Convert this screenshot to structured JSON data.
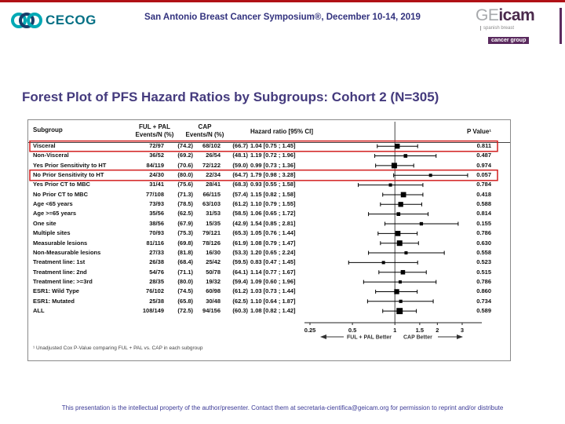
{
  "colors": {
    "accent_red": "#b01116",
    "title_purple": "#443a7d",
    "header_indigo": "#32327e",
    "footer_indigo": "#3b3a96",
    "highlight_red": "#d21f1f",
    "cecog_teal": "#00a9b5",
    "cecog_navy": "#173f6b",
    "geicam_purple": "#5a2a5e",
    "marker_black": "#000000"
  },
  "header": {
    "cecog_label": "CECOG",
    "symposium_title": "San Antonio Breast Cancer Symposium®, December 10-14, 2019",
    "geicam": {
      "ge": "GE",
      "icam": "icam",
      "sub1": "spanish breast",
      "sub2": "cancer group"
    }
  },
  "slide_title": "Forest Plot of PFS Hazard Ratios by Subgroups: Cohort 2 (N=305)",
  "chart_data": {
    "type": "forest",
    "title": "Forest Plot of PFS Hazard Ratios by Subgroups: Cohort 2 (N=305)",
    "scale": "log",
    "axis": {
      "ticks": [
        0.25,
        0.5,
        1,
        1.5,
        2,
        3
      ],
      "ref_line": 1,
      "range": [
        0.25,
        3.55
      ]
    },
    "columns": {
      "subgroup": "Subgroup",
      "arm1_line1": "FUL + PAL",
      "arm1_line2": "Events/N (%)",
      "arm2_line1": "CAP",
      "arm2_line2": "Events/N (%)",
      "hr": "Hazard ratio [95% CI]",
      "p": "P Value¹"
    },
    "direction_labels": {
      "left": "FUL + PAL Better",
      "right": "CAP Better"
    },
    "footnote": "¹ Unadjusted Cox P-Value comparing FUL + PAL vs. CAP in each subgroup",
    "highlighted_rows": [
      0,
      3
    ],
    "rows": [
      {
        "subgroup": "Visceral",
        "arm1_events": "72/97",
        "arm1_pct": "(74.2)",
        "arm2_events": "68/102",
        "arm2_pct": "(66.7)",
        "hr": 1.04,
        "ci_low": 0.75,
        "ci_high": 1.45,
        "hr_label": "1.04 [0.75 ; 1.45]",
        "p_value": "0.811"
      },
      {
        "subgroup": "Non-Visceral",
        "arm1_events": "36/52",
        "arm1_pct": "(69.2)",
        "arm2_events": "26/54",
        "arm2_pct": "(48.1)",
        "hr": 1.19,
        "ci_low": 0.72,
        "ci_high": 1.96,
        "hr_label": "1.19 [0.72 ; 1.96]",
        "p_value": "0.487"
      },
      {
        "subgroup": "Yes Prior Sensitivity to HT",
        "arm1_events": "84/119",
        "arm1_pct": "(70.6)",
        "arm2_events": "72/122",
        "arm2_pct": "(59.0)",
        "hr": 0.99,
        "ci_low": 0.73,
        "ci_high": 1.36,
        "hr_label": "0.99 [0.73 ; 1.36]",
        "p_value": "0.974"
      },
      {
        "subgroup": "No Prior Sensitivity to HT",
        "arm1_events": "24/30",
        "arm1_pct": "(80.0)",
        "arm2_events": "22/34",
        "arm2_pct": "(64.7)",
        "hr": 1.79,
        "ci_low": 0.98,
        "ci_high": 3.28,
        "hr_label": "1.79 [0.98 ; 3.28]",
        "p_value": "0.057"
      },
      {
        "subgroup": "Yes Prior CT to MBC",
        "arm1_events": "31/41",
        "arm1_pct": "(75.6)",
        "arm2_events": "28/41",
        "arm2_pct": "(68.3)",
        "hr": 0.93,
        "ci_low": 0.55,
        "ci_high": 1.58,
        "hr_label": "0.93 [0.55 ; 1.58]",
        "p_value": "0.784"
      },
      {
        "subgroup": "No Prior CT to MBC",
        "arm1_events": "77/108",
        "arm1_pct": "(71.3)",
        "arm2_events": "66/115",
        "arm2_pct": "(57.4)",
        "hr": 1.15,
        "ci_low": 0.82,
        "ci_high": 1.58,
        "hr_label": "1.15 [0.82 ; 1.58]",
        "p_value": "0.418"
      },
      {
        "subgroup": "Age <65 years",
        "arm1_events": "73/93",
        "arm1_pct": "(78.5)",
        "arm2_events": "63/103",
        "arm2_pct": "(61.2)",
        "hr": 1.1,
        "ci_low": 0.79,
        "ci_high": 1.55,
        "hr_label": "1.10 [0.79 ; 1.55]",
        "p_value": "0.588"
      },
      {
        "subgroup": "Age >=65 years",
        "arm1_events": "35/56",
        "arm1_pct": "(62.5)",
        "arm2_events": "31/53",
        "arm2_pct": "(58.5)",
        "hr": 1.06,
        "ci_low": 0.65,
        "ci_high": 1.72,
        "hr_label": "1.06 [0.65 ; 1.72]",
        "p_value": "0.814"
      },
      {
        "subgroup": "One site",
        "arm1_events": "38/56",
        "arm1_pct": "(67.9)",
        "arm2_events": "15/35",
        "arm2_pct": "(42.9)",
        "hr": 1.54,
        "ci_low": 0.85,
        "ci_high": 2.81,
        "hr_label": "1.54 [0.85 ; 2.81]",
        "p_value": "0.155"
      },
      {
        "subgroup": "Multiple sites",
        "arm1_events": "70/93",
        "arm1_pct": "(75.3)",
        "arm2_events": "79/121",
        "arm2_pct": "(65.3)",
        "hr": 1.05,
        "ci_low": 0.76,
        "ci_high": 1.44,
        "hr_label": "1.05 [0.76 ; 1.44]",
        "p_value": "0.786"
      },
      {
        "subgroup": "Measurable lesions",
        "arm1_events": "81/116",
        "arm1_pct": "(69.8)",
        "arm2_events": "78/126",
        "arm2_pct": "(61.9)",
        "hr": 1.08,
        "ci_low": 0.79,
        "ci_high": 1.47,
        "hr_label": "1.08 [0.79 ; 1.47]",
        "p_value": "0.630"
      },
      {
        "subgroup": "Non-Measurable lesions",
        "arm1_events": "27/33",
        "arm1_pct": "(81.8)",
        "arm2_events": "16/30",
        "arm2_pct": "(53.3)",
        "hr": 1.2,
        "ci_low": 0.65,
        "ci_high": 2.24,
        "hr_label": "1.20 [0.65 ; 2.24]",
        "p_value": "0.558"
      },
      {
        "subgroup": "Treatment line: 1st",
        "arm1_events": "26/38",
        "arm1_pct": "(68.4)",
        "arm2_events": "25/42",
        "arm2_pct": "(59.5)",
        "hr": 0.83,
        "ci_low": 0.47,
        "ci_high": 1.45,
        "hr_label": "0.83 [0.47 ; 1.45]",
        "p_value": "0.523"
      },
      {
        "subgroup": "Treatment line: 2nd",
        "arm1_events": "54/76",
        "arm1_pct": "(71.1)",
        "arm2_events": "50/78",
        "arm2_pct": "(64.1)",
        "hr": 1.14,
        "ci_low": 0.77,
        "ci_high": 1.67,
        "hr_label": "1.14 [0.77 ; 1.67]",
        "p_value": "0.515"
      },
      {
        "subgroup": "Treatment line: >=3rd",
        "arm1_events": "28/35",
        "arm1_pct": "(80.0)",
        "arm2_events": "19/32",
        "arm2_pct": "(59.4)",
        "hr": 1.09,
        "ci_low": 0.6,
        "ci_high": 1.96,
        "hr_label": "1.09 [0.60 ; 1.96]",
        "p_value": "0.786"
      },
      {
        "subgroup": "ESR1: Wild Type",
        "arm1_events": "76/102",
        "arm1_pct": "(74.5)",
        "arm2_events": "60/98",
        "arm2_pct": "(61.2)",
        "hr": 1.03,
        "ci_low": 0.73,
        "ci_high": 1.44,
        "hr_label": "1.03 [0.73 ; 1.44]",
        "p_value": "0.860"
      },
      {
        "subgroup": "ESR1: Mutated",
        "arm1_events": "25/38",
        "arm1_pct": "(65.8)",
        "arm2_events": "30/48",
        "arm2_pct": "(62.5)",
        "hr": 1.1,
        "ci_low": 0.64,
        "ci_high": 1.87,
        "hr_label": "1.10 [0.64 ; 1.87]",
        "p_value": "0.734"
      },
      {
        "subgroup": "ALL",
        "arm1_events": "108/149",
        "arm1_pct": "(72.5)",
        "arm2_events": "94/156",
        "arm2_pct": "(60.3)",
        "hr": 1.08,
        "ci_low": 0.82,
        "ci_high": 1.42,
        "hr_label": "1.08 [0.82 ; 1.42]",
        "p_value": "0.589"
      }
    ]
  },
  "footer": "This presentation is the intellectual property of the author/presenter. Contact them at secretaria-cientifica@geicam.org for permission to reprint and/or distribute"
}
